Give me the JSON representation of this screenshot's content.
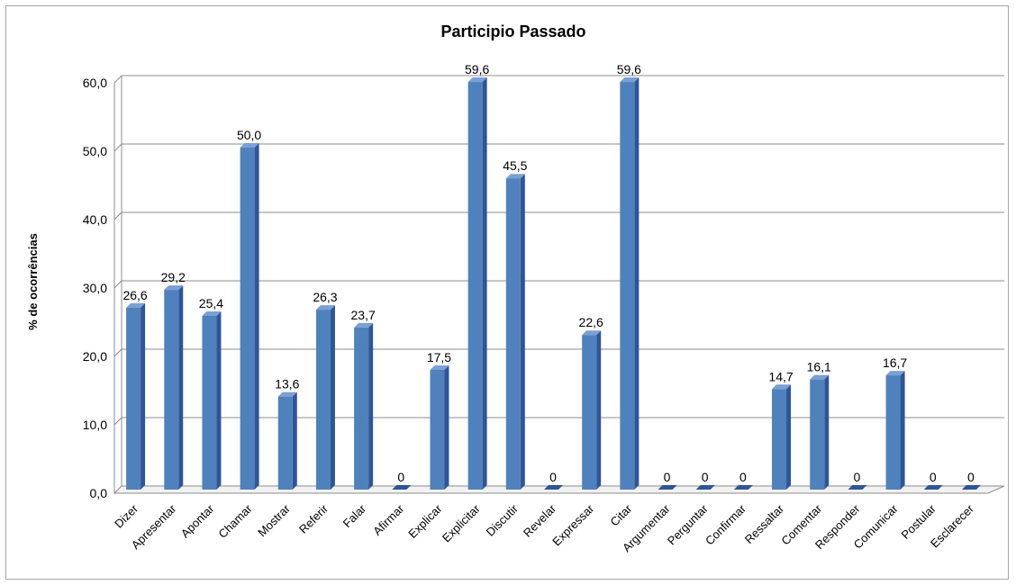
{
  "chart_data": {
    "type": "bar",
    "title": "Participio Passado",
    "xlabel": "",
    "ylabel": "% de ocorrências",
    "ylim": [
      0,
      60
    ],
    "yticks": [
      "0,0",
      "10,0",
      "20,0",
      "30,0",
      "40,0",
      "50,0",
      "60,0"
    ],
    "grid": true,
    "categories": [
      "Dizer",
      "Apresentar",
      "Apontar",
      "Chamar",
      "Mostrar",
      "Referir",
      "Falar",
      "Afirmar",
      "Explicar",
      "Explicitar",
      "Discutir",
      "Revelar",
      "Expressar",
      "Citar",
      "Argumentar",
      "Perguntar",
      "Confirmar",
      "Ressaltar",
      "Comentar",
      "Responder",
      "Comunicar",
      "Postular",
      "Esclarecer"
    ],
    "values": [
      26.6,
      29.2,
      25.4,
      50.0,
      13.6,
      26.3,
      23.7,
      0,
      17.5,
      59.6,
      45.5,
      0,
      22.6,
      59.6,
      0,
      0,
      0,
      14.7,
      16.1,
      0,
      16.7,
      0,
      0
    ],
    "data_labels": [
      "26,6",
      "29,2",
      "25,4",
      "50,0",
      "13,6",
      "26,3",
      "23,7",
      "0",
      "17,5",
      "59,6",
      "45,5",
      "0",
      "22,6",
      "59,6",
      "0",
      "0",
      "0",
      "14,7",
      "16,1",
      "0",
      "16,7",
      "0",
      "0"
    ],
    "colors": {
      "bar_front": "#4f81bd",
      "bar_side": "#2f5597",
      "bar_top": "#7ba0d4",
      "gridline": "#8c8c8c"
    }
  }
}
